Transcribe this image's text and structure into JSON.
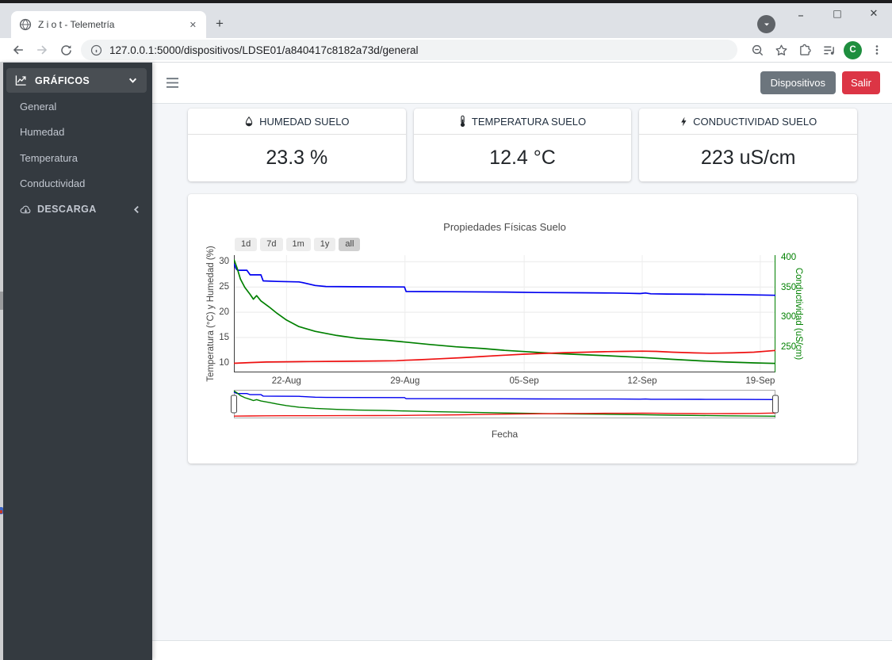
{
  "browser": {
    "tab_title": "Z i o t - Telemetría",
    "tab_close": "✕",
    "new_tab": "+",
    "url": "127.0.0.1:5000/dispositivos/LDSE01/a840417c8182a73d/general",
    "avatar_initial": "C",
    "avatar_color": "#1e8e3e",
    "window": {
      "minimize": "–",
      "maximize": "□",
      "close": "✕"
    }
  },
  "navbar": {
    "devices_button": "Dispositivos",
    "devices_color": "#6c757d",
    "logout_button": "Salir",
    "logout_color": "#dc3545"
  },
  "sidebar": {
    "graphics_menu": {
      "label": "GRÁFICOS",
      "icon": "chart-line-icon",
      "state": "expanded"
    },
    "items": [
      {
        "label": "General"
      },
      {
        "label": "Humedad"
      },
      {
        "label": "Temperatura"
      },
      {
        "label": "Conductividad"
      }
    ],
    "download_menu": {
      "label": "DESCARGA",
      "icon": "cloud-download-icon",
      "state": "collapsed"
    }
  },
  "cards": [
    {
      "icon": "droplet-icon",
      "title": "HUMEDAD SUELO",
      "value": "23.3 %"
    },
    {
      "icon": "thermometer-icon",
      "title": "TEMPERATURA SUELO",
      "value": "12.4 °C"
    },
    {
      "icon": "bolt-icon",
      "title": "CONDUCTIVIDAD SUELO",
      "value": "223 uS/cm"
    }
  ],
  "chart_data": {
    "type": "line",
    "title": "Propiedades Físicas Suelo",
    "xlabel": "Fecha",
    "ylabel_left": "Temperatura (°C) y Humedad (%)",
    "ylabel_right": "Conductividad (uS/cm)",
    "range_buttons": [
      "1d",
      "7d",
      "1m",
      "1y",
      "all"
    ],
    "active_range": "all",
    "range_slider": true,
    "grid": true,
    "x_ticks": [
      {
        "label": "22-Aug",
        "f": 0.097
      },
      {
        "label": "29-Aug",
        "f": 0.316
      },
      {
        "label": "05-Sep",
        "f": 0.536
      },
      {
        "label": "12-Sep",
        "f": 0.754
      },
      {
        "label": "19-Sep",
        "f": 0.972
      }
    ],
    "y_left": {
      "ticks": [
        10,
        15,
        20,
        25,
        30
      ],
      "range": [
        8.1,
        31.3
      ],
      "color": "#444444"
    },
    "y_right": {
      "ticks": [
        250,
        300,
        350,
        400
      ],
      "range": [
        207,
        404
      ],
      "color": "#008000"
    },
    "series": [
      {
        "id": "humedad",
        "name": "Humedad (%)",
        "axis": "left",
        "color": "#0000f0",
        "points": [
          [
            0,
            29.6
          ],
          [
            0.004,
            28.6
          ],
          [
            0.007,
            28.3
          ],
          [
            0.024,
            28.3
          ],
          [
            0.03,
            27.4
          ],
          [
            0.05,
            27.4
          ],
          [
            0.054,
            26.2
          ],
          [
            0.08,
            26.1
          ],
          [
            0.12,
            26.0
          ],
          [
            0.125,
            25.9
          ],
          [
            0.15,
            25.3
          ],
          [
            0.17,
            25.1
          ],
          [
            0.22,
            25.05
          ],
          [
            0.315,
            25.0
          ],
          [
            0.318,
            24.1
          ],
          [
            0.4,
            24.05
          ],
          [
            0.5,
            24.0
          ],
          [
            0.56,
            23.9
          ],
          [
            0.64,
            23.85
          ],
          [
            0.7,
            23.8
          ],
          [
            0.73,
            23.75
          ],
          [
            0.75,
            23.7
          ],
          [
            0.76,
            23.8
          ],
          [
            0.77,
            23.65
          ],
          [
            0.8,
            23.6
          ],
          [
            0.86,
            23.55
          ],
          [
            0.93,
            23.5
          ],
          [
            1,
            23.35
          ]
        ]
      },
      {
        "id": "conductividad",
        "name": "Conductividad (uS/cm)",
        "axis": "right",
        "color": "#008000",
        "points": [
          [
            0,
            397
          ],
          [
            0.006,
            382
          ],
          [
            0.012,
            364
          ],
          [
            0.02,
            350
          ],
          [
            0.03,
            338
          ],
          [
            0.036,
            330
          ],
          [
            0.042,
            336
          ],
          [
            0.05,
            327
          ],
          [
            0.065,
            317
          ],
          [
            0.08,
            306
          ],
          [
            0.097,
            295
          ],
          [
            0.12,
            284
          ],
          [
            0.15,
            276
          ],
          [
            0.19,
            269
          ],
          [
            0.23,
            264
          ],
          [
            0.28,
            261
          ],
          [
            0.316,
            258
          ],
          [
            0.36,
            254
          ],
          [
            0.41,
            250
          ],
          [
            0.46,
            247
          ],
          [
            0.5,
            244
          ],
          [
            0.536,
            242
          ],
          [
            0.59,
            239
          ],
          [
            0.64,
            237
          ],
          [
            0.69,
            235
          ],
          [
            0.754,
            232
          ],
          [
            0.81,
            229
          ],
          [
            0.86,
            226.5
          ],
          [
            0.91,
            224.5
          ],
          [
            0.96,
            223
          ],
          [
            1,
            222
          ]
        ]
      },
      {
        "id": "temperatura",
        "name": "Temperatura (°C)",
        "axis": "left",
        "color": "#ee1111",
        "points": [
          [
            0,
            9.9
          ],
          [
            0.03,
            10.05
          ],
          [
            0.06,
            10.15
          ],
          [
            0.097,
            10.2
          ],
          [
            0.14,
            10.25
          ],
          [
            0.2,
            10.3
          ],
          [
            0.26,
            10.35
          ],
          [
            0.3,
            10.4
          ],
          [
            0.316,
            10.5
          ],
          [
            0.34,
            10.6
          ],
          [
            0.38,
            10.8
          ],
          [
            0.42,
            11.0
          ],
          [
            0.46,
            11.25
          ],
          [
            0.5,
            11.5
          ],
          [
            0.536,
            11.7
          ],
          [
            0.57,
            11.85
          ],
          [
            0.61,
            12.0
          ],
          [
            0.65,
            12.1
          ],
          [
            0.69,
            12.2
          ],
          [
            0.72,
            12.25
          ],
          [
            0.754,
            12.3
          ],
          [
            0.78,
            12.25
          ],
          [
            0.81,
            12.1
          ],
          [
            0.85,
            11.95
          ],
          [
            0.88,
            11.9
          ],
          [
            0.92,
            11.95
          ],
          [
            0.96,
            12.1
          ],
          [
            1,
            12.45
          ]
        ]
      }
    ]
  }
}
